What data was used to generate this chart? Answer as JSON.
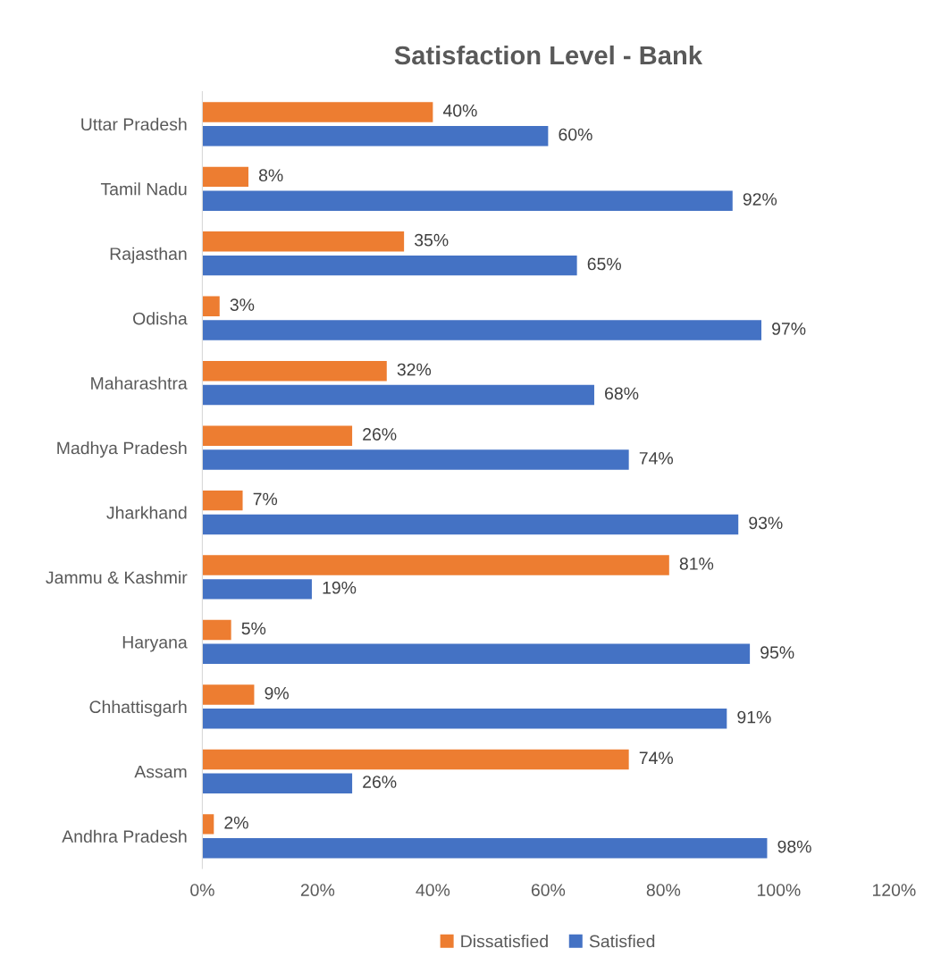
{
  "chart_data": {
    "type": "bar",
    "orientation": "horizontal",
    "title": "Satisfaction Level - Bank",
    "categories": [
      "Uttar Pradesh",
      "Tamil Nadu",
      "Rajasthan",
      "Odisha",
      "Maharashtra",
      "Madhya Pradesh",
      "Jharkhand",
      "Jammu & Kashmir",
      "Haryana",
      "Chhattisgarh",
      "Assam",
      "Andhra Pradesh"
    ],
    "series": [
      {
        "name": "Dissatisfied",
        "color": "#ed7d31",
        "values": [
          40,
          8,
          35,
          3,
          32,
          26,
          7,
          81,
          5,
          9,
          74,
          2
        ],
        "value_labels": [
          "40%",
          "8%",
          "35%",
          "3%",
          "32%",
          "26%",
          "7%",
          "81%",
          "5%",
          "9%",
          "74%",
          "2%"
        ]
      },
      {
        "name": "Satisfied",
        "color": "#4472c4",
        "values": [
          60,
          92,
          65,
          97,
          68,
          74,
          93,
          19,
          95,
          91,
          26,
          98
        ],
        "value_labels": [
          "60%",
          "92%",
          "65%",
          "97%",
          "68%",
          "74%",
          "93%",
          "19%",
          "95%",
          "91%",
          "26%",
          "98%"
        ]
      }
    ],
    "xlim": [
      0,
      120
    ],
    "xticks": [
      {
        "value": 0,
        "label": "0%"
      },
      {
        "value": 20,
        "label": "20%"
      },
      {
        "value": 40,
        "label": "40%"
      },
      {
        "value": 60,
        "label": "60%"
      },
      {
        "value": 80,
        "label": "80%"
      },
      {
        "value": 100,
        "label": "100%"
      },
      {
        "value": 120,
        "label": "120%"
      }
    ],
    "grid": false,
    "legend": "bottom"
  }
}
